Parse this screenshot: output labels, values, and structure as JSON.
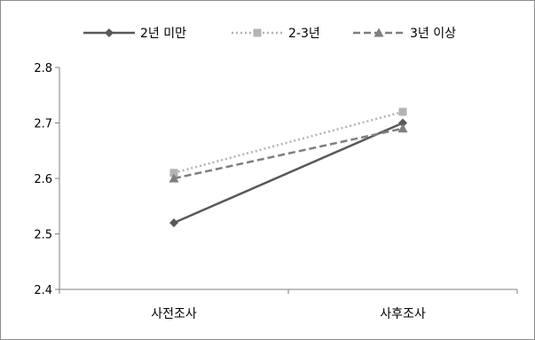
{
  "chart_data": {
    "type": "line",
    "categories": [
      "사전조사",
      "사후조사"
    ],
    "series": [
      {
        "name": "2년 미만",
        "values": [
          2.52,
          2.7
        ],
        "color": "#595959",
        "marker": "diamond",
        "dash": "solid"
      },
      {
        "name": "2-3년",
        "values": [
          2.61,
          2.72
        ],
        "color": "#b3b3b3",
        "marker": "square",
        "dash": "dotted"
      },
      {
        "name": "3년 이상",
        "values": [
          2.6,
          2.69
        ],
        "color": "#7f7f7f",
        "marker": "triangle",
        "dash": "dashed"
      }
    ],
    "ylim": [
      2.4,
      2.8
    ],
    "yticks": [
      "2.4",
      "2.5",
      "2.6",
      "2.7",
      "2.8"
    ],
    "legend_position": "top",
    "grid": false
  }
}
